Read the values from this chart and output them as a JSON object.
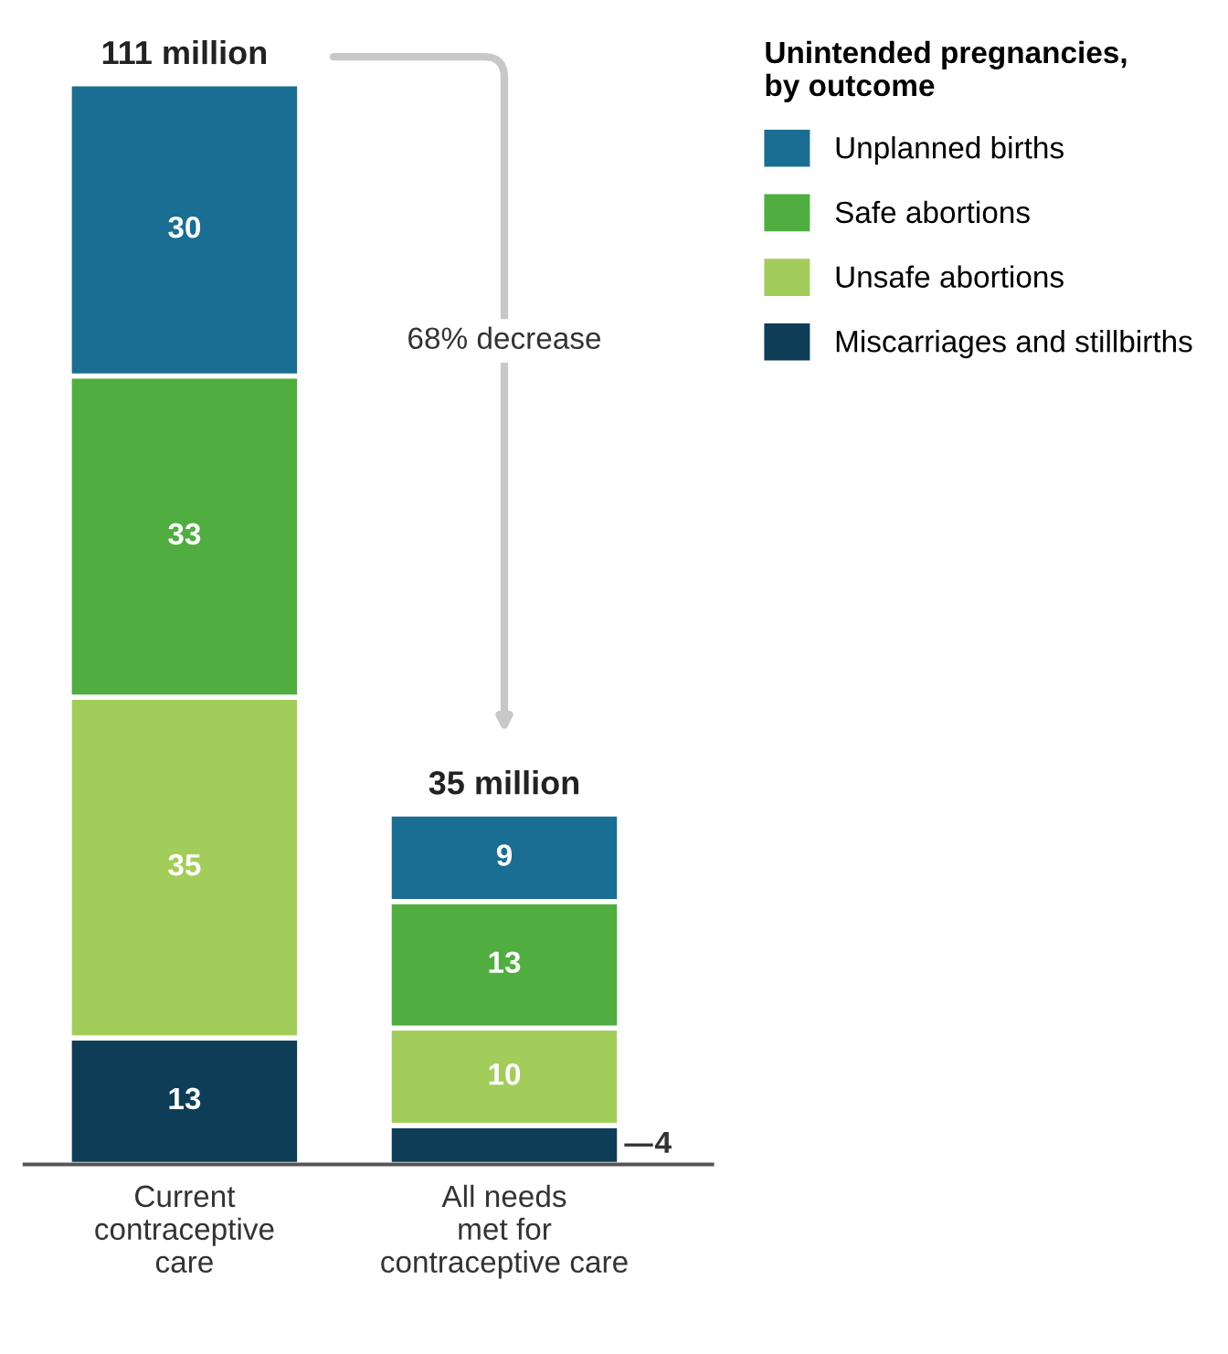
{
  "chart_data": {
    "type": "bar",
    "stacked": true,
    "categories": [
      "Current\ncontraceptive\ncare",
      "All needs\nmet for\ncontraceptive care"
    ],
    "series": [
      {
        "name": "Miscarriages and stillbirths",
        "color": "#0e3d57",
        "values": [
          13,
          4
        ]
      },
      {
        "name": "Unsafe abortions",
        "color": "#a3cd5b",
        "values": [
          35,
          10
        ]
      },
      {
        "name": "Safe abortions",
        "color": "#4fae3f",
        "values": [
          33,
          13
        ]
      },
      {
        "name": "Unplanned births",
        "color": "#1b6e93",
        "values": [
          30,
          9
        ]
      }
    ],
    "totals": [
      "111 million",
      "35 million"
    ],
    "annotations": [
      "68% decrease"
    ],
    "legend_title": "Unintended pregnancies,\nby outcome",
    "legend": "top right",
    "data_labels": true,
    "grid": false
  }
}
